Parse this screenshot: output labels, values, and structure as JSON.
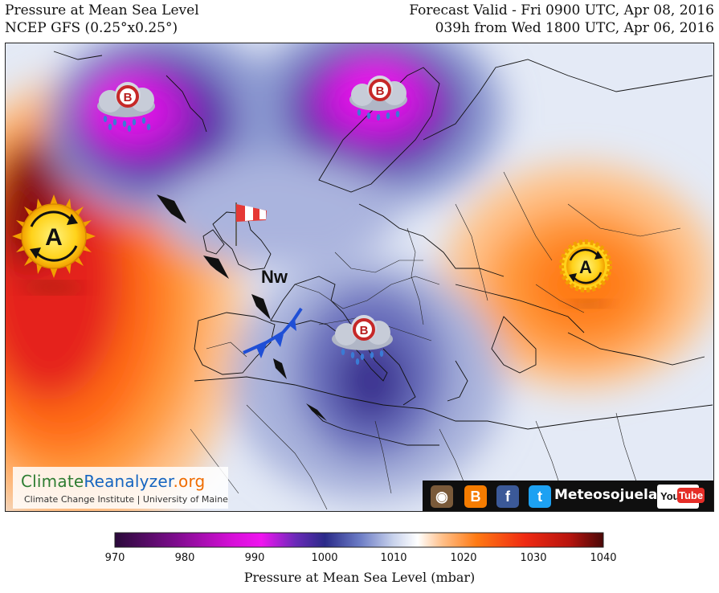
{
  "header": {
    "title": "Pressure at Mean Sea Level",
    "model": "NCEP GFS (0.25°x0.25°)",
    "valid": "Forecast Valid - Fri 0900 UTC, Apr 08, 2016",
    "lead": "039h from Wed 1800 UTC, Apr 06, 2016"
  },
  "map": {
    "high_label": "A",
    "low_label": "B",
    "wind_label": "Nw",
    "colors": {
      "high_core": "#e5201a",
      "high_mid": "#ff7a14",
      "high_edge": "#ffc38a",
      "low_core": "#ee14ee",
      "low_mid": "#5a2aa8",
      "low_edge": "#8a98d0",
      "neutral": "#e4eaf6",
      "front": "#1f4fd6"
    }
  },
  "logo": {
    "part1": "Climate",
    "part2": "Reanalyzer",
    "part3": ".org",
    "subtitle": "Climate Change Institute | University of Maine"
  },
  "social": {
    "name": "Meteosojuela",
    "icons": [
      "instagram-icon",
      "blogger-icon",
      "facebook-icon",
      "twitter-icon",
      "youtube-icon"
    ],
    "yt_you": "You",
    "yt_tube": "Tube"
  },
  "colorbar": {
    "title": "Pressure at Mean Sea Level (mbar)",
    "ticks": [
      "970",
      "980",
      "990",
      "1000",
      "1010",
      "1020",
      "1030",
      "1040"
    ]
  }
}
